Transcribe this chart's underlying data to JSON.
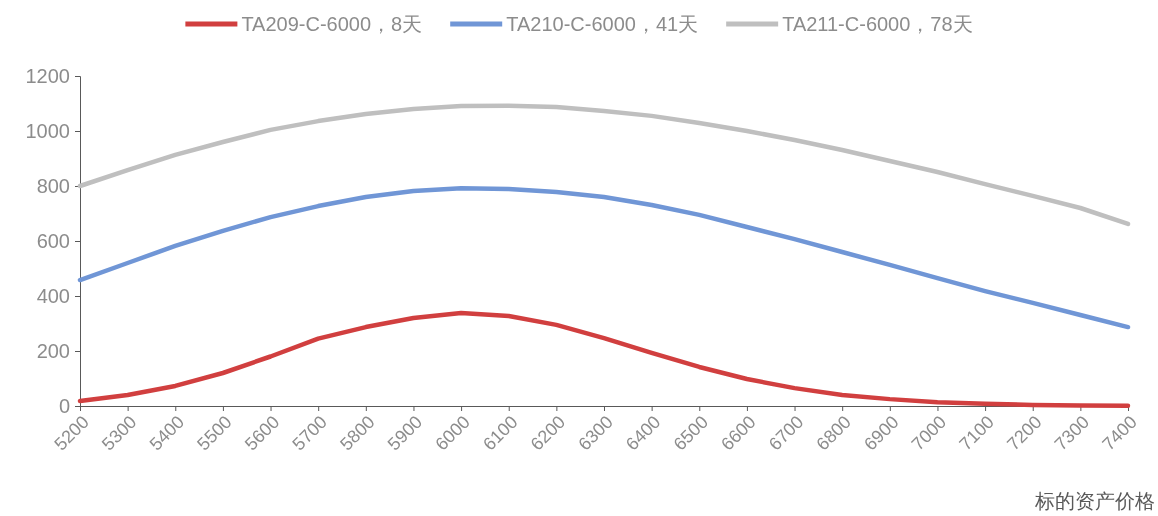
{
  "chart_data": {
    "type": "line",
    "xlabel": "标的资产价格",
    "categories": [
      "5200",
      "5300",
      "5400",
      "5500",
      "5600",
      "5700",
      "5800",
      "5900",
      "6000",
      "6100",
      "6200",
      "6300",
      "6400",
      "6500",
      "6600",
      "6700",
      "6800",
      "6900",
      "7000",
      "7100",
      "7200",
      "7300",
      "7400"
    ],
    "series": [
      {
        "name": "TA209-C-6000，8天",
        "color": "#d13f3f",
        "values": [
          18,
          40,
          73,
          120,
          180,
          245,
          287,
          320,
          338,
          327,
          295,
          247,
          193,
          142,
          98,
          65,
          40,
          25,
          14,
          8,
          4,
          2,
          1
        ]
      },
      {
        "name": "TA210-C-6000，41天",
        "color": "#7096d6",
        "values": [
          458,
          520,
          582,
          637,
          687,
          727,
          760,
          782,
          792,
          789,
          778,
          760,
          731,
          695,
          651,
          607,
          560,
          513,
          465,
          418,
          375,
          331,
          287
        ]
      },
      {
        "name": "TA211-C-6000，78天",
        "color": "#bfbfbf",
        "values": [
          800,
          858,
          913,
          960,
          1004,
          1036,
          1062,
          1080,
          1091,
          1092,
          1087,
          1073,
          1055,
          1029,
          1000,
          967,
          931,
          891,
          851,
          807,
          764,
          720,
          662
        ]
      }
    ],
    "ylim": [
      0,
      1200
    ],
    "yticks": [
      0,
      200,
      400,
      600,
      800,
      1000,
      1200
    ],
    "grid": false,
    "legend": "top",
    "marker": "none",
    "line_style": "solid"
  }
}
